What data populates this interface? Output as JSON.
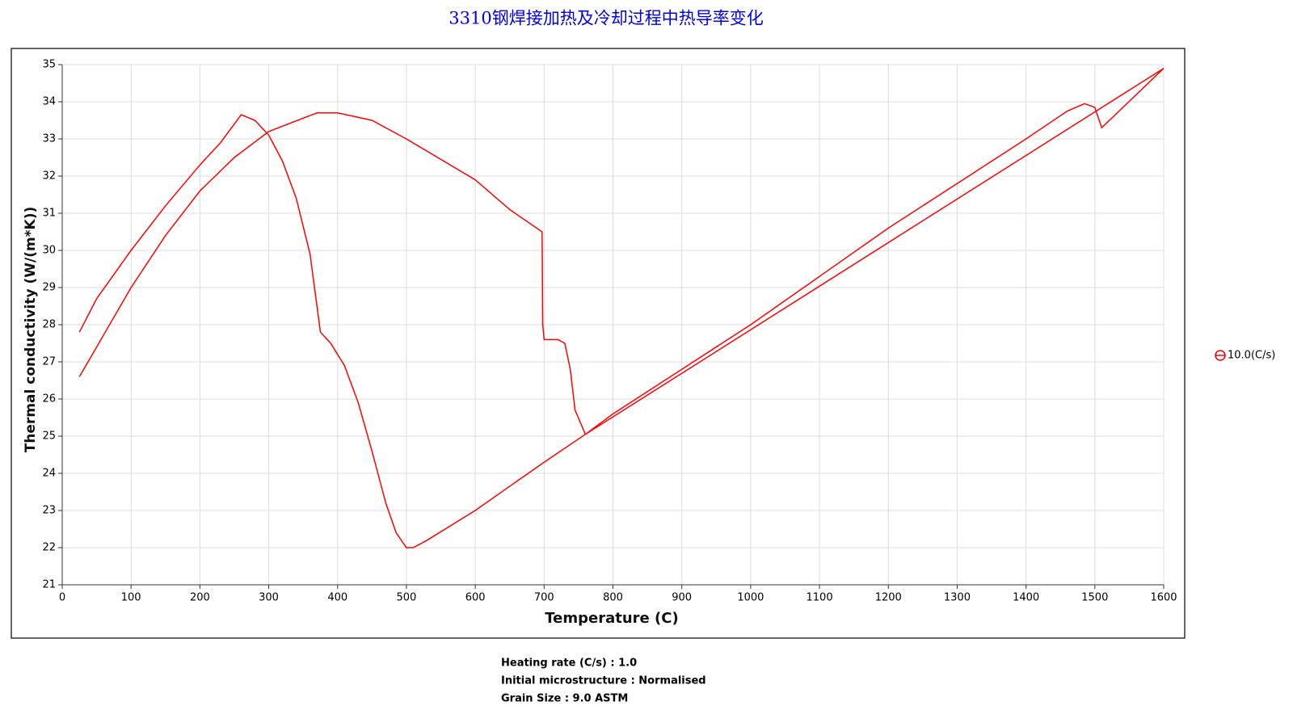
{
  "chart_data": {
    "type": "line",
    "title": "3310钢焊接加热及冷却过程中热导率变化",
    "x_label": "Temperature (C)",
    "y_label": "Thermal conductivity (W/(m*K))",
    "xlim": [
      0,
      1600
    ],
    "xticks": [
      0,
      100,
      200,
      300,
      400,
      500,
      600,
      700,
      800,
      900,
      1000,
      1100,
      1200,
      1300,
      1400,
      1500,
      1600
    ],
    "ylim": [
      21,
      35
    ],
    "yticks": [
      21,
      22,
      23,
      24,
      25,
      26,
      27,
      28,
      29,
      30,
      31,
      32,
      33,
      34,
      35
    ],
    "grid": true,
    "legend": "right",
    "series": [
      {
        "name": "10.0(C/s)",
        "color": "#ff0000",
        "x": [
          25,
          50,
          100,
          150,
          200,
          230,
          260,
          280,
          300,
          320,
          340,
          360,
          375,
          390,
          410,
          430,
          450,
          470,
          485,
          500,
          510,
          530,
          600,
          700,
          760,
          800,
          900,
          1000,
          1100,
          1200,
          1300,
          1400,
          1460,
          1485,
          1500,
          1510,
          1600,
          760,
          745,
          738,
          730,
          720,
          700,
          698,
          697,
          650,
          600,
          500,
          450,
          400,
          370,
          300,
          250,
          200,
          150,
          100,
          50,
          25
        ],
        "values": [
          27.8,
          28.7,
          30.0,
          31.2,
          32.3,
          32.9,
          33.65,
          33.5,
          33.1,
          32.4,
          31.4,
          29.9,
          27.8,
          27.5,
          26.9,
          25.9,
          24.6,
          23.2,
          22.4,
          22.0,
          22.0,
          22.2,
          23.0,
          24.3,
          25.05,
          25.6,
          26.8,
          28.0,
          29.3,
          30.6,
          31.8,
          33.0,
          33.75,
          33.95,
          33.85,
          33.3,
          34.9,
          25.05,
          25.7,
          26.8,
          27.5,
          27.6,
          27.6,
          28.0,
          30.5,
          31.1,
          31.9,
          33.0,
          33.5,
          33.7,
          33.7,
          33.2,
          32.5,
          31.6,
          30.4,
          29.0,
          27.4,
          26.6
        ]
      }
    ],
    "notes": [
      "Heating rate (C/s) : 1.0",
      "Initial microstructure : Normalised",
      "Grain Size : 9.0 ASTM"
    ]
  }
}
